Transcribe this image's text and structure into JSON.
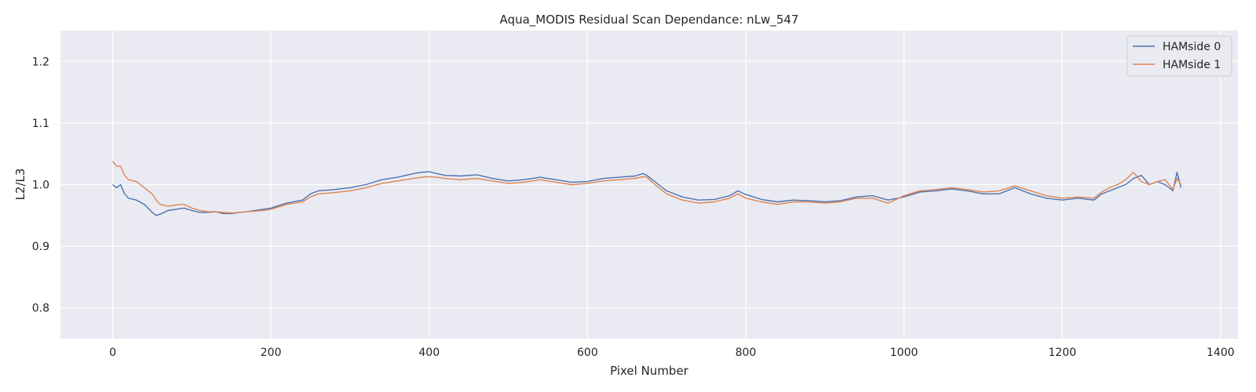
{
  "chart_data": {
    "type": "line",
    "title": "Aqua_MODIS Residual Scan Dependance: nLw_547",
    "xlabel": "Pixel Number",
    "ylabel": "L2/L3",
    "xlim": [
      -66,
      1422
    ],
    "ylim": [
      0.75,
      1.25
    ],
    "xticks": [
      0,
      200,
      400,
      600,
      800,
      1000,
      1200,
      1400
    ],
    "yticks": [
      0.8,
      0.9,
      1.0,
      1.1,
      1.2
    ],
    "xtick_labels": [
      "0",
      "200",
      "400",
      "600",
      "800",
      "1000",
      "1200",
      "1400"
    ],
    "ytick_labels": [
      "0.8",
      "0.9",
      "1.0",
      "1.1",
      "1.2"
    ],
    "grid": true,
    "legend_position": "top-right",
    "background": "#eaeaf2",
    "series": [
      {
        "name": "HAMside 0",
        "color": "#4c72b0",
        "x": [
          0,
          5,
          10,
          15,
          20,
          30,
          40,
          50,
          55,
          60,
          70,
          80,
          90,
          100,
          110,
          120,
          130,
          140,
          150,
          160,
          170,
          180,
          190,
          200,
          210,
          220,
          240,
          250,
          260,
          280,
          300,
          320,
          340,
          360,
          380,
          390,
          400,
          410,
          420,
          440,
          460,
          480,
          500,
          520,
          540,
          560,
          580,
          600,
          620,
          640,
          660,
          670,
          675,
          680,
          690,
          700,
          720,
          740,
          760,
          780,
          790,
          800,
          820,
          840,
          860,
          880,
          900,
          920,
          940,
          960,
          980,
          1000,
          1020,
          1040,
          1060,
          1080,
          1100,
          1120,
          1140,
          1160,
          1180,
          1200,
          1220,
          1240,
          1250,
          1260,
          1270,
          1280,
          1290,
          1300,
          1310,
          1320,
          1330,
          1340,
          1345,
          1350
        ],
        "y": [
          1.0,
          0.995,
          1.0,
          0.985,
          0.978,
          0.975,
          0.968,
          0.955,
          0.95,
          0.952,
          0.958,
          0.96,
          0.962,
          0.958,
          0.955,
          0.955,
          0.956,
          0.953,
          0.953,
          0.955,
          0.956,
          0.958,
          0.96,
          0.962,
          0.966,
          0.97,
          0.975,
          0.985,
          0.99,
          0.992,
          0.995,
          1.0,
          1.008,
          1.012,
          1.018,
          1.02,
          1.021,
          1.018,
          1.015,
          1.014,
          1.016,
          1.01,
          1.006,
          1.008,
          1.012,
          1.008,
          1.004,
          1.005,
          1.01,
          1.012,
          1.014,
          1.018,
          1.015,
          1.01,
          1.0,
          0.99,
          0.98,
          0.975,
          0.976,
          0.982,
          0.99,
          0.984,
          0.976,
          0.972,
          0.975,
          0.974,
          0.972,
          0.974,
          0.98,
          0.982,
          0.975,
          0.98,
          0.988,
          0.99,
          0.993,
          0.99,
          0.985,
          0.985,
          0.995,
          0.985,
          0.978,
          0.975,
          0.978,
          0.975,
          0.985,
          0.99,
          0.995,
          1.0,
          1.01,
          1.015,
          1.0,
          1.005,
          1.0,
          0.99,
          1.02,
          0.995
        ]
      },
      {
        "name": "HAMside 1",
        "color": "#dd8452",
        "x": [
          0,
          5,
          10,
          15,
          20,
          30,
          40,
          50,
          55,
          60,
          70,
          80,
          90,
          100,
          110,
          120,
          130,
          140,
          150,
          160,
          170,
          180,
          190,
          200,
          210,
          220,
          240,
          250,
          260,
          280,
          300,
          320,
          340,
          360,
          380,
          390,
          400,
          410,
          420,
          440,
          460,
          480,
          500,
          520,
          540,
          560,
          580,
          600,
          620,
          640,
          660,
          670,
          675,
          680,
          690,
          700,
          720,
          740,
          760,
          780,
          790,
          800,
          820,
          840,
          860,
          880,
          900,
          920,
          940,
          960,
          980,
          1000,
          1020,
          1040,
          1060,
          1080,
          1100,
          1120,
          1140,
          1160,
          1180,
          1200,
          1220,
          1240,
          1250,
          1260,
          1270,
          1280,
          1290,
          1300,
          1310,
          1320,
          1330,
          1340,
          1345,
          1350
        ],
        "y": [
          1.038,
          1.03,
          1.03,
          1.015,
          1.008,
          1.005,
          0.995,
          0.985,
          0.975,
          0.968,
          0.965,
          0.967,
          0.968,
          0.962,
          0.958,
          0.956,
          0.956,
          0.955,
          0.954,
          0.955,
          0.956,
          0.957,
          0.958,
          0.96,
          0.964,
          0.968,
          0.972,
          0.98,
          0.985,
          0.987,
          0.99,
          0.995,
          1.002,
          1.006,
          1.01,
          1.012,
          1.013,
          1.012,
          1.01,
          1.008,
          1.01,
          1.006,
          1.002,
          1.004,
          1.008,
          1.004,
          1.0,
          1.002,
          1.006,
          1.008,
          1.01,
          1.013,
          1.012,
          1.006,
          0.995,
          0.985,
          0.975,
          0.97,
          0.972,
          0.978,
          0.985,
          0.978,
          0.972,
          0.968,
          0.972,
          0.972,
          0.97,
          0.972,
          0.978,
          0.978,
          0.97,
          0.982,
          0.99,
          0.992,
          0.995,
          0.992,
          0.988,
          0.99,
          0.998,
          0.99,
          0.982,
          0.978,
          0.98,
          0.978,
          0.988,
          0.995,
          1.0,
          1.008,
          1.02,
          1.005,
          1.0,
          1.005,
          1.008,
          0.992,
          1.01,
          1.0
        ]
      }
    ]
  }
}
